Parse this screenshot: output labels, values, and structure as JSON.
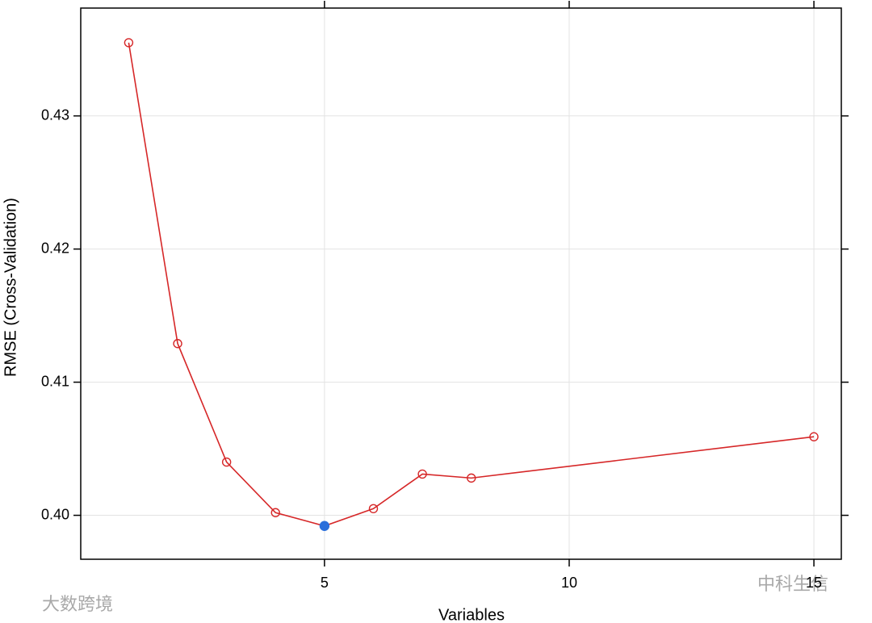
{
  "chart_data": {
    "type": "line",
    "x_label": "Variables",
    "y_label": "RMSE (Cross-Validation)",
    "x": [
      1,
      2,
      3,
      4,
      5,
      6,
      7,
      8,
      15
    ],
    "series": [
      {
        "color": "#d62728",
        "values": [
          0.4355,
          0.4129,
          0.404,
          0.4002,
          0.3992,
          0.4005,
          0.4031,
          0.4028,
          0.4059
        ]
      }
    ],
    "highlight_index": 4,
    "highlight_color": "#2a6fdb",
    "xlim": [
      0.02,
      15.56
    ],
    "xticks": [
      5,
      10,
      15
    ],
    "ylim": [
      0.3967,
      0.4381
    ],
    "yticks": [
      {
        "value": 0.4,
        "label": "0.40"
      },
      0.41,
      0.42,
      0.43
    ],
    "grid": true,
    "watermarks": [
      "大数跨境",
      "中科生信"
    ]
  }
}
